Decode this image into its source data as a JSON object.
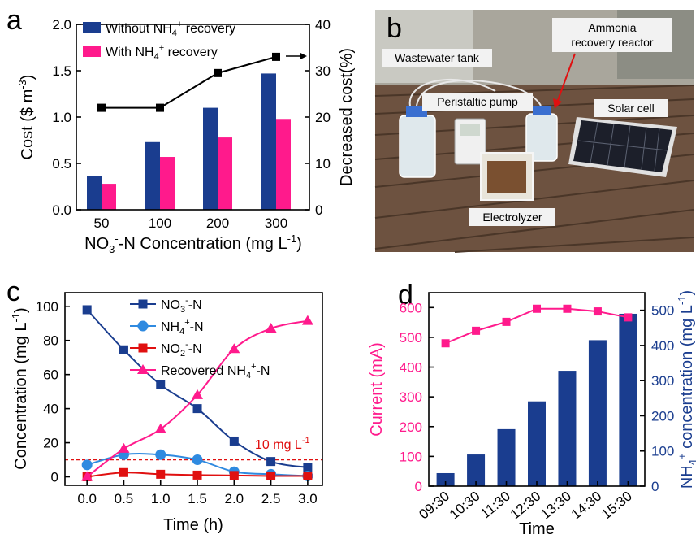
{
  "panels": {
    "a": "a",
    "b": "b",
    "c": "c",
    "d": "d"
  },
  "photo_b": {
    "labels": {
      "wastewater_tank": "Wastewater tank",
      "peristaltic_pump": "Peristaltic pump",
      "ammonia_reactor_1": "Ammonia",
      "ammonia_reactor_2": "recovery reactor",
      "solar_cell": "Solar cell",
      "electrolyzer": "Electrolyzer"
    },
    "colors": {
      "deck": "#6d5240",
      "wall": "#a9a69c",
      "label_box": "#f2f2f2",
      "arrow": "#e01010"
    }
  },
  "chart_data": [
    {
      "id": "a",
      "type": "bar",
      "categories": [
        "50",
        "100",
        "200",
        "300"
      ],
      "series": [
        {
          "name_main": "Without NH",
          "name_sub": "4",
          "name_sup": "+",
          "name_tail": " recovery",
          "color": "#1a3d8f",
          "values": [
            0.36,
            0.73,
            1.1,
            1.47
          ]
        },
        {
          "name_main": "With NH",
          "name_sub": "4",
          "name_sup": "+",
          "name_tail": " recovery",
          "color": "#ff1a8c",
          "values": [
            0.28,
            0.57,
            0.78,
            0.98
          ]
        }
      ],
      "line_series": {
        "name": "Decreased cost",
        "values": [
          22,
          22,
          29.5,
          33
        ],
        "color": "#000000"
      },
      "ylim": [
        0,
        2.0
      ],
      "yticks": [
        "0.0",
        "0.5",
        "1.0",
        "1.5",
        "2.0"
      ],
      "y2lim": [
        0,
        40
      ],
      "y2ticks": [
        "0",
        "10",
        "20",
        "30",
        "40"
      ],
      "ylabel": {
        "main": "Cost ($ m",
        "sup": "-3",
        "tail": ")"
      },
      "y2label": "Decreased cost(%)",
      "xlabel": {
        "main": "NO",
        "sub": "3",
        "sup": "-",
        "mid": "-N Concentration (mg L",
        "sup2": "-1",
        "tail": ")"
      }
    },
    {
      "id": "c",
      "type": "line",
      "x": [
        0.0,
        0.5,
        1.0,
        1.5,
        2.0,
        2.5,
        3.0
      ],
      "xticks": [
        "0.0",
        "0.5",
        "1.0",
        "1.5",
        "2.0",
        "2.5",
        "3.0"
      ],
      "yticks": [
        "0",
        "20",
        "40",
        "60",
        "80",
        "100"
      ],
      "xlim": [
        -0.3,
        3.2
      ],
      "ylim": [
        -5,
        108
      ],
      "series": [
        {
          "key": "no3",
          "main": "NO",
          "sub": "3",
          "sup": "-",
          "tail": "-N",
          "color": "#1a3d8f",
          "marker": "square",
          "values": [
            98,
            74.5,
            54,
            40,
            21,
            9,
            5.5
          ]
        },
        {
          "key": "nh4",
          "main": "NH",
          "sub": "4",
          "sup": "+",
          "tail": "-N",
          "color": "#2f8ae0",
          "marker": "circle",
          "values": [
            7,
            13,
            13,
            10,
            3,
            1.5,
            0.5
          ]
        },
        {
          "key": "no2",
          "main": "NO",
          "sub": "2",
          "sup": "-",
          "tail": "-N",
          "color": "#e01010",
          "marker": "square",
          "values": [
            0,
            2.5,
            1.5,
            1,
            0.8,
            0.5,
            0.5
          ]
        },
        {
          "key": "rec",
          "main": "Recovered NH",
          "sub": "4",
          "sup": "+",
          "tail": "-N",
          "color": "#ff1a8c",
          "marker": "triangle",
          "values": [
            0,
            16.5,
            28,
            48,
            75,
            87,
            91.5
          ]
        }
      ],
      "threshold": {
        "value": 10,
        "label_main": "10 mg L",
        "label_sup": "-1",
        "color": "#e01010"
      },
      "xlabel": "Time (h)",
      "ylabel": {
        "main": "Concentration (mg L",
        "sup": "-1",
        "tail": ")"
      }
    },
    {
      "id": "d",
      "type": "bar",
      "categories": [
        "09:30",
        "10:30",
        "11:30",
        "12:30",
        "13:30",
        "14:30",
        "15:30"
      ],
      "bar_series": {
        "name": "NH4+ concentration",
        "color": "#1a3d8f",
        "values": [
          37,
          90,
          162,
          241,
          328,
          415,
          490
        ]
      },
      "line_series": {
        "name": "Current",
        "color": "#ff1a8c",
        "values": [
          480,
          522,
          552,
          596,
          596,
          587,
          567
        ]
      },
      "ylim": [
        0,
        650
      ],
      "yticks": [
        "0",
        "100",
        "200",
        "300",
        "400",
        "500",
        "600"
      ],
      "y2lim": [
        0,
        550
      ],
      "y2ticks": [
        "0",
        "100",
        "200",
        "300",
        "400",
        "500"
      ],
      "xlabel": "Time",
      "ylabel": "Current (mA)",
      "y2label": {
        "main": "NH",
        "sub": "4",
        "sup": "+",
        "tail": " concentration (mg L",
        "sup2": "-1",
        "tail2": ")"
      }
    }
  ]
}
